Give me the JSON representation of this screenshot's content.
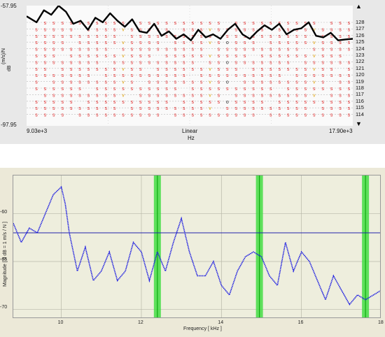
{
  "top_chart": {
    "y_max_label": "-57.95",
    "y_min_label": "-97.95",
    "y_unit": "(m/s)/N",
    "y_axis_label": "dB",
    "x_start_label": "9.03e+3",
    "x_end_label": "17.90e+3",
    "scale_label": "Linear",
    "x_unit": "Hz",
    "row_labels": [
      "128",
      "127",
      "126",
      "125",
      "124",
      "123",
      "122",
      "121",
      "120",
      "119",
      "118",
      "117",
      "116",
      "115",
      "114"
    ],
    "mode_letters": [
      "s",
      "v",
      "o"
    ],
    "colors": {
      "curve": "#000000",
      "mode_s": "#e02020",
      "mode_v": "#e0a000",
      "mode_o": "#222222"
    }
  },
  "bottom_chart": {
    "y_axis_label": "Magnitude [ 0 dB = 1 m/s / N ]",
    "x_axis_label": "Frequency [ kHz ]",
    "y_ticks": [
      "-60",
      "-65",
      "-70"
    ],
    "x_ticks": [
      "10",
      "12",
      "14",
      "16",
      "18"
    ],
    "highlights_khz": [
      12.4,
      14.95,
      17.6
    ],
    "reference_level_db": -62,
    "colors": {
      "curve": "#1a1ae0",
      "highlight": "#44dd44",
      "highlight_center": "#11aa11"
    }
  },
  "chart_data": [
    {
      "type": "line",
      "ylim": [
        -97.95,
        -57.95
      ],
      "xlim": [
        9030,
        17900
      ],
      "xlabel": "Hz",
      "ylabel": "dB",
      "series": [
        {
          "x": [
            9030,
            9300,
            9500,
            9700,
            9900,
            10100,
            10300,
            10500,
            10700,
            10900,
            11100,
            11300,
            11500,
            11700,
            11900,
            12100,
            12300,
            12500,
            12700,
            12900,
            13100,
            13300,
            13500,
            13700,
            13900,
            14100,
            14300,
            14500,
            14700,
            14900,
            15100,
            15300,
            15500,
            15700,
            15900,
            16100,
            16300,
            16500,
            16700,
            16900,
            17100,
            17300,
            17500,
            17700,
            17900
          ],
          "values": [
            -61.5,
            -63.5,
            -59.5,
            -61,
            -58,
            -60,
            -64,
            -63,
            -66,
            -62,
            -63.5,
            -60.5,
            -63,
            -65,
            -62.5,
            -66.5,
            -67,
            -64,
            -68,
            -66.5,
            -69,
            -67.5,
            -69.5,
            -66,
            -68.5,
            -67.5,
            -69,
            -66,
            -64,
            -67.5,
            -69,
            -66.5,
            -64.5,
            -66,
            -64,
            -67.5,
            -66,
            -65.5,
            -63.5,
            -68,
            -68.5,
            -67,
            -69.5,
            -69.2,
            -69
          ]
        }
      ]
    },
    {
      "type": "line",
      "xlim": [
        8.8,
        18
      ],
      "ylim": [
        -71,
        -56
      ],
      "xlabel": "Frequency [ kHz ]",
      "ylabel": "Magnitude [ 0 dB = 1 m/s / N ]",
      "series": [
        {
          "x": [
            8.8,
            9.0,
            9.2,
            9.4,
            9.6,
            9.8,
            10.0,
            10.1,
            10.2,
            10.4,
            10.6,
            10.8,
            11.0,
            11.2,
            11.4,
            11.6,
            11.8,
            12.0,
            12.2,
            12.4,
            12.6,
            12.8,
            13.0,
            13.2,
            13.4,
            13.6,
            13.8,
            14.0,
            14.2,
            14.4,
            14.6,
            14.8,
            15.0,
            15.2,
            15.4,
            15.6,
            15.8,
            16.0,
            16.2,
            16.4,
            16.6,
            16.8,
            17.0,
            17.2,
            17.4,
            17.6,
            17.8,
            18.0
          ],
          "values": [
            -61,
            -63,
            -61.5,
            -62,
            -60,
            -58,
            -57.2,
            -59,
            -62,
            -66,
            -63.5,
            -67,
            -66,
            -64,
            -67,
            -66,
            -63,
            -64,
            -67,
            -64,
            -66,
            -63,
            -60.5,
            -64,
            -66.5,
            -66.5,
            -65,
            -67.5,
            -68.5,
            -66,
            -64.5,
            -64,
            -64.5,
            -66.5,
            -67.5,
            -63,
            -66,
            -64,
            -65,
            -67,
            -69,
            -66.5,
            -68,
            -69.5,
            -68.5,
            -69,
            -68.5,
            -68
          ]
        }
      ]
    }
  ]
}
